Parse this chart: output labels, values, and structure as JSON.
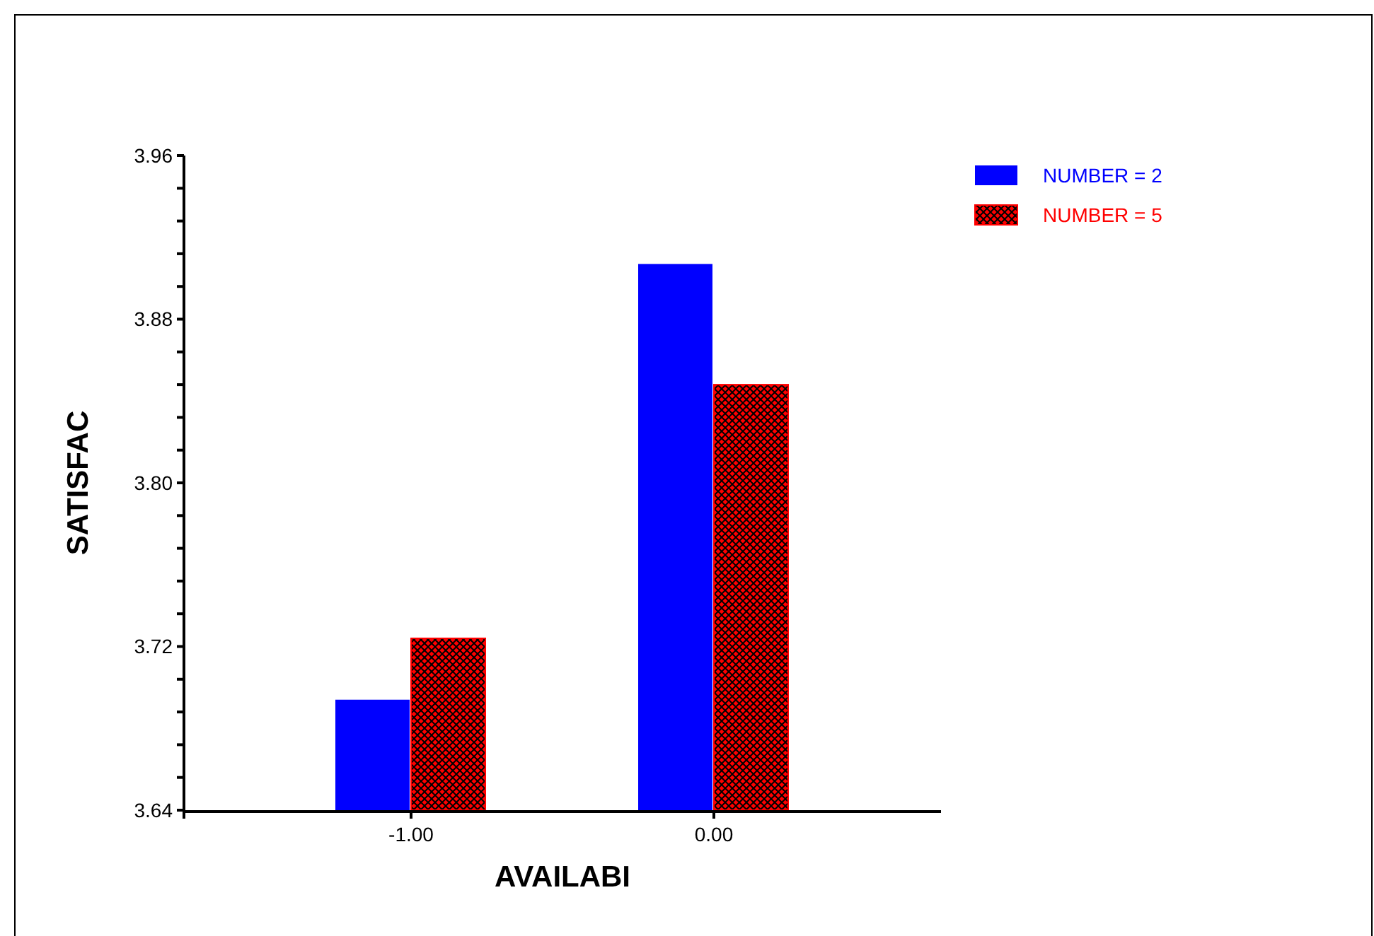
{
  "chart_data": {
    "type": "bar",
    "xlabel": "AVAILABI",
    "ylabel": "SATISFAC",
    "categories": [
      "-1.00",
      "0.00"
    ],
    "series": [
      {
        "name": "NUMBER = 2",
        "color": "#0000ff",
        "values": [
          3.694,
          3.907
        ]
      },
      {
        "name": "NUMBER = 5",
        "color": "#ff0000",
        "values": [
          3.724,
          3.848
        ]
      }
    ],
    "ylim": [
      3.64,
      3.96
    ],
    "yticks": [
      {
        "value": 3.64,
        "label": "3.64"
      },
      {
        "value": 3.656,
        "label": null
      },
      {
        "value": 3.672,
        "label": null
      },
      {
        "value": 3.688,
        "label": null
      },
      {
        "value": 3.704,
        "label": null
      },
      {
        "value": 3.72,
        "label": "3.72"
      },
      {
        "value": 3.736,
        "label": null
      },
      {
        "value": 3.752,
        "label": null
      },
      {
        "value": 3.768,
        "label": null
      },
      {
        "value": 3.784,
        "label": null
      },
      {
        "value": 3.8,
        "label": "3.80"
      },
      {
        "value": 3.816,
        "label": null
      },
      {
        "value": 3.832,
        "label": null
      },
      {
        "value": 3.848,
        "label": null
      },
      {
        "value": 3.864,
        "label": null
      },
      {
        "value": 3.88,
        "label": "3.88"
      },
      {
        "value": 3.896,
        "label": null
      },
      {
        "value": 3.912,
        "label": null
      },
      {
        "value": 3.928,
        "label": null
      },
      {
        "value": 3.944,
        "label": null
      },
      {
        "value": 3.96,
        "label": "3.96"
      }
    ],
    "grid": false,
    "legend": "top right"
  }
}
